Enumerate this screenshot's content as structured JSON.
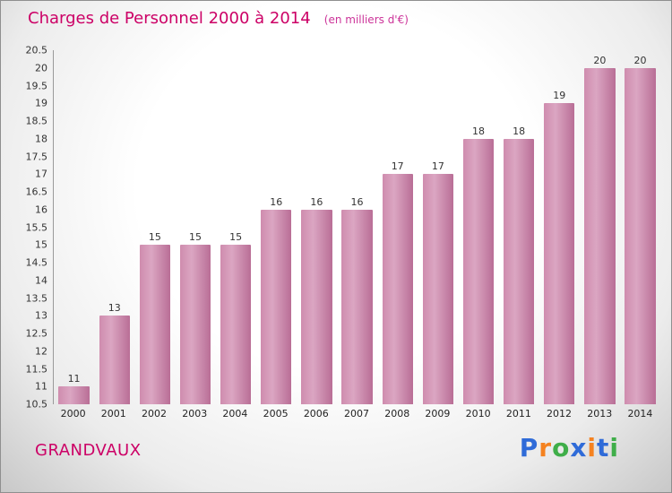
{
  "header": {
    "title": "Charges de Personnel 2000 à 2014",
    "subtitle": "(en milliers d'€)"
  },
  "chart_data": {
    "type": "bar",
    "categories": [
      "2000",
      "2001",
      "2002",
      "2003",
      "2004",
      "2005",
      "2006",
      "2007",
      "2008",
      "2009",
      "2010",
      "2011",
      "2012",
      "2013",
      "2014"
    ],
    "values": [
      11,
      13,
      15,
      15,
      15,
      16,
      16,
      16,
      17,
      17,
      18,
      18,
      19,
      20,
      20
    ],
    "title": "Charges de Personnel 2000 à 2014",
    "subtitle": "(en milliers d'€)",
    "xlabel": "",
    "ylabel": "",
    "ylim": [
      10.5,
      20.5
    ],
    "ytick_step": 0.5,
    "grid": false,
    "legend": false,
    "bar_color": "#c97ca4",
    "value_labels": true
  },
  "footer": {
    "brand": "GRANDVAUX",
    "logo_letters": [
      {
        "char": "P",
        "color": "#2f6bd8"
      },
      {
        "char": "r",
        "color": "#f58220"
      },
      {
        "char": "o",
        "color": "#3fae49"
      },
      {
        "char": "x",
        "color": "#2f6bd8"
      },
      {
        "char": "i",
        "color": "#f58220"
      },
      {
        "char": "t",
        "color": "#2f6bd8"
      },
      {
        "char": "i",
        "color": "#3fae49"
      }
    ]
  },
  "colors": {
    "accent": "#cc0066",
    "bar": "#c97ca4",
    "axis": "#9a9a9a",
    "tick_text": "#333333"
  }
}
